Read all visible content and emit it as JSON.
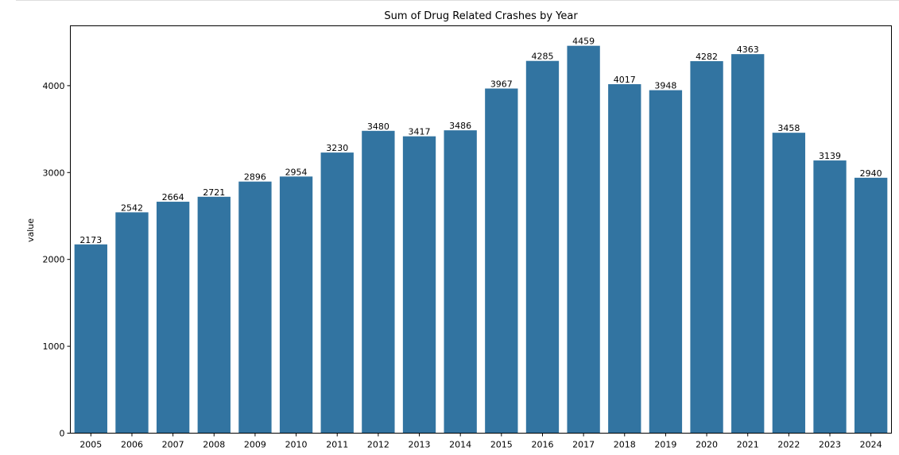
{
  "chart_data": {
    "type": "bar",
    "title": "Sum of Drug Related Crashes by Year",
    "xlabel": "",
    "ylabel": "value",
    "ylim": [
      0,
      4689
    ],
    "yticks": [
      0,
      1000,
      2000,
      3000,
      4000
    ],
    "grid": false,
    "bar_color": "#3274a1",
    "categories": [
      "2005",
      "2006",
      "2007",
      "2008",
      "2009",
      "2010",
      "2011",
      "2012",
      "2013",
      "2014",
      "2015",
      "2016",
      "2017",
      "2018",
      "2019",
      "2020",
      "2021",
      "2022",
      "2023",
      "2024"
    ],
    "values": [
      2173,
      2542,
      2664,
      2721,
      2896,
      2954,
      3230,
      3480,
      3417,
      3486,
      3967,
      4285,
      4459,
      4017,
      3948,
      4282,
      4363,
      3458,
      3139,
      2940
    ]
  }
}
